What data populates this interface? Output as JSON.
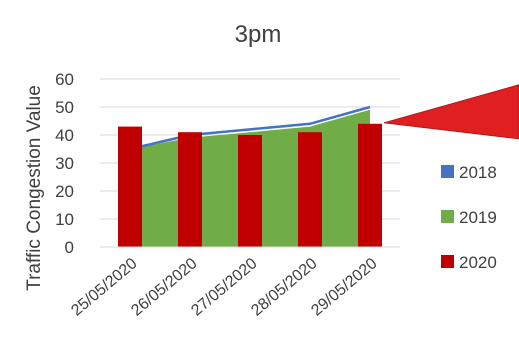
{
  "chart_data": {
    "type": "bar",
    "title": "3pm",
    "ylabel": "Traffic Congestion Value",
    "xlabel": "",
    "categories": [
      "25/05/2020",
      "26/05/2020",
      "27/05/2020",
      "28/05/2020",
      "29/05/2020"
    ],
    "ylim": [
      0,
      60
    ],
    "yticks": [
      0,
      10,
      20,
      30,
      40,
      50,
      60
    ],
    "grid": true,
    "legend_position": "right",
    "series": [
      {
        "name": "2018",
        "kind": "line",
        "color": "#4472C4",
        "values": [
          35,
          40,
          42,
          44,
          50
        ]
      },
      {
        "name": "2019",
        "kind": "area",
        "color": "#70AD47",
        "values": [
          35,
          39,
          41,
          43,
          49
        ]
      },
      {
        "name": "2020",
        "kind": "bar",
        "color": "#C00000",
        "values": [
          43,
          41,
          40,
          41,
          44
        ]
      }
    ],
    "annotation": {
      "shape": "callout-arrow",
      "color": "#E02020",
      "points_to_series": "2020",
      "points_to_category": "29/05/2020"
    }
  }
}
